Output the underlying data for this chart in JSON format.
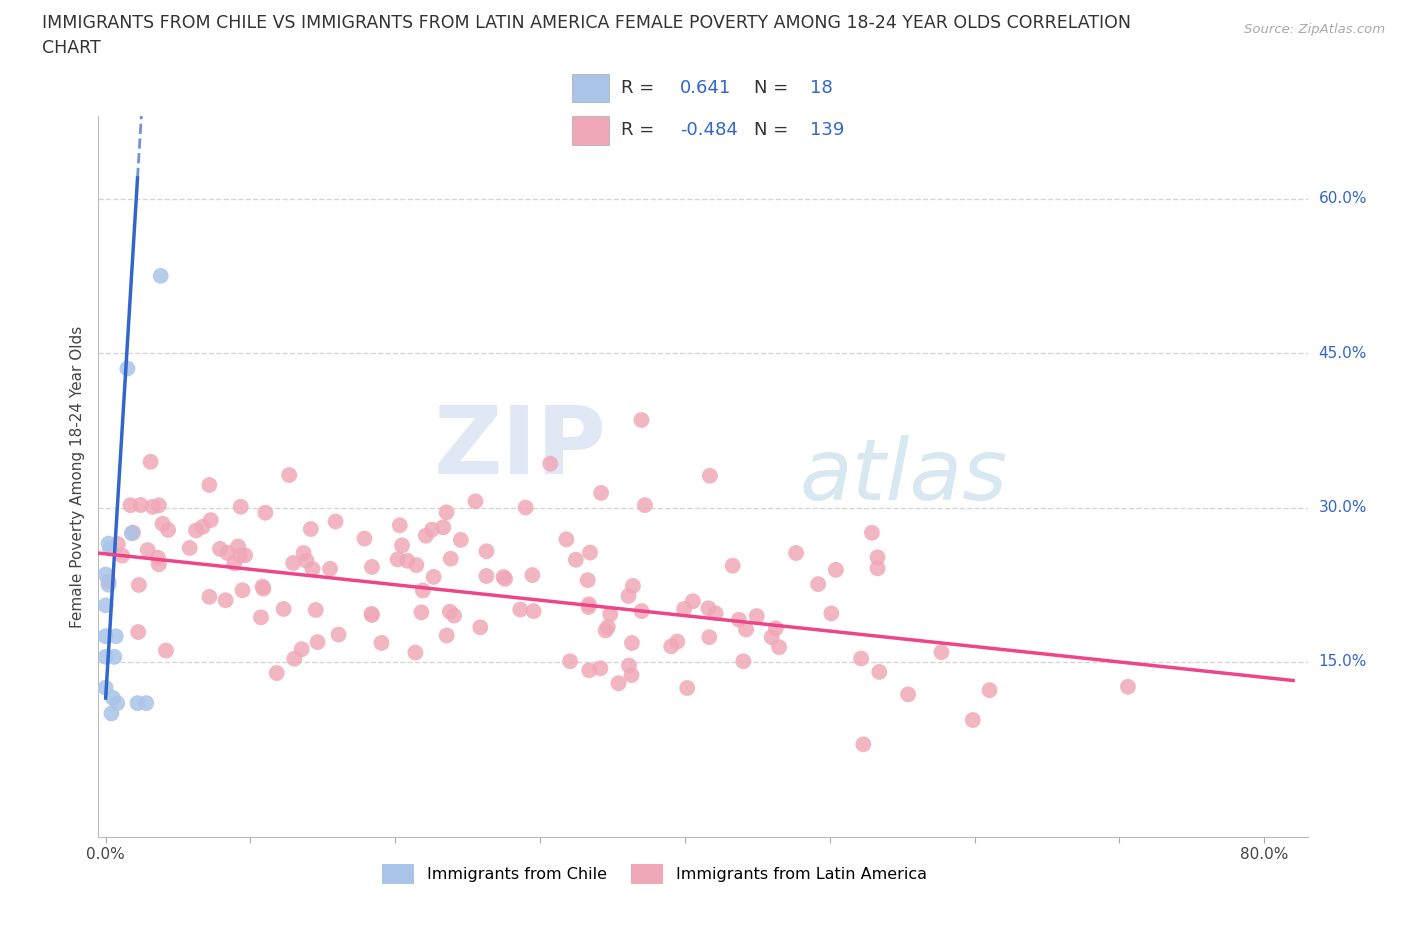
{
  "title_line1": "IMMIGRANTS FROM CHILE VS IMMIGRANTS FROM LATIN AMERICA FEMALE POVERTY AMONG 18-24 YEAR OLDS CORRELATION",
  "title_line2": "CHART",
  "source_text": "Source: ZipAtlas.com",
  "ylabel": "Female Poverty Among 18-24 Year Olds",
  "xlim": [
    -0.005,
    0.83
  ],
  "ylim": [
    -0.02,
    0.68
  ],
  "xtick_positions": [
    0.0,
    0.1,
    0.2,
    0.3,
    0.4,
    0.5,
    0.6,
    0.7,
    0.8
  ],
  "xticklabels": [
    "0.0%",
    "",
    "",
    "",
    "",
    "",
    "",
    "",
    "80.0%"
  ],
  "ytick_positions": [
    0.15,
    0.3,
    0.45,
    0.6
  ],
  "ytick_labels": [
    "15.0%",
    "30.0%",
    "45.0%",
    "60.0%"
  ],
  "grid_color": "#cccccc",
  "background_color": "#ffffff",
  "watermark_zip": "ZIP",
  "watermark_atlas": "atlas",
  "legend_R1": "0.641",
  "legend_N1": "18",
  "legend_R2": "-0.484",
  "legend_N2": "139",
  "chile_color": "#aac4e8",
  "latin_color": "#f0a8b8",
  "chile_line_color": "#3366cc",
  "latin_line_color": "#ee4488",
  "chile_scatter_seed": 7,
  "latin_scatter_seed": 13,
  "legend_text_color": "#333333",
  "legend_value_color": "#3366cc",
  "ytick_label_color": "#3366cc",
  "title_fontsize": 12.5,
  "ylabel_fontsize": 11,
  "tick_fontsize": 11,
  "legend_fontsize": 13
}
